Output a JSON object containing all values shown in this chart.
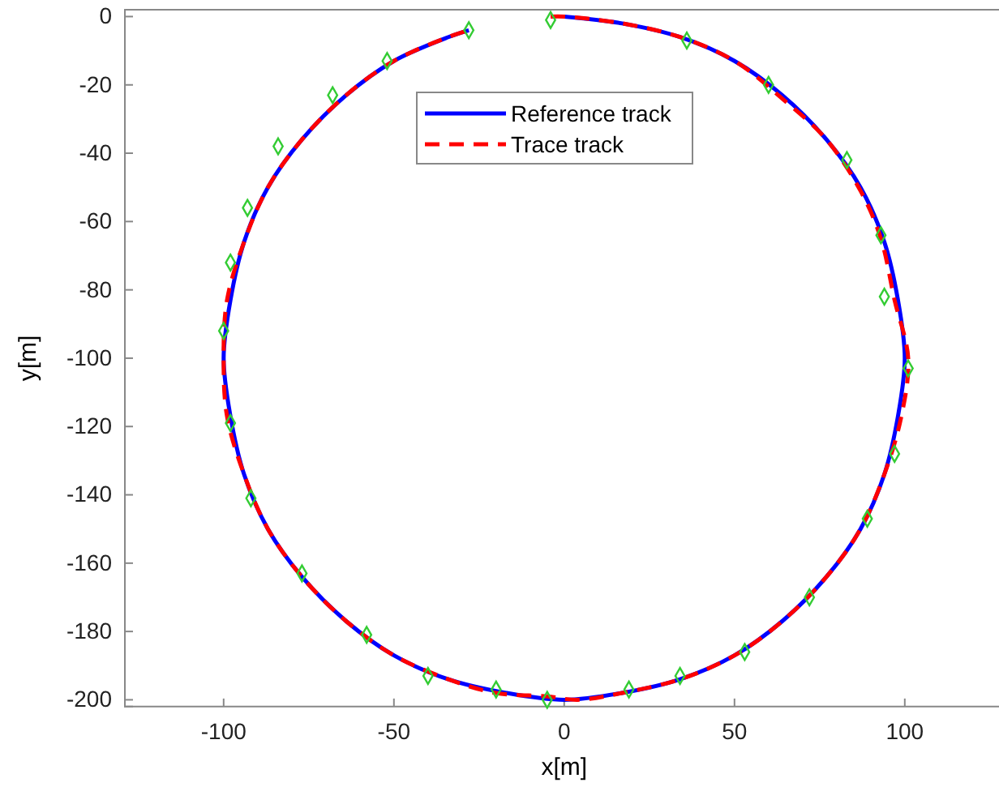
{
  "chart_data": {
    "type": "line",
    "xlabel": "x[m]",
    "ylabel": "y[m]",
    "xlim": [
      -129,
      130
    ],
    "ylim": [
      -202,
      2
    ],
    "xticks": [
      -100,
      -50,
      0,
      50,
      100
    ],
    "yticks": [
      -200,
      -180,
      -160,
      -140,
      -120,
      -100,
      -80,
      -60,
      -40,
      -20,
      0
    ],
    "grid": false,
    "legend": "top",
    "series": [
      {
        "name": "Reference track",
        "color": "#0000ff",
        "line_style": "solid",
        "x": [
          0,
          17,
          34,
          50,
          64,
          77,
          87,
          94,
          98,
          100,
          98,
          94,
          87,
          77,
          64,
          50,
          34,
          17,
          0,
          -17,
          -34,
          -50,
          -64,
          -77,
          -87,
          -94,
          -98,
          -100,
          -98,
          -94,
          -87,
          -77,
          -64,
          -50,
          -34,
          -28
        ],
        "values": [
          0,
          -2,
          -6,
          -13,
          -23,
          -36,
          -50,
          -66,
          -83,
          -100,
          -117,
          -134,
          -150,
          -164,
          -177,
          -187,
          -194,
          -198,
          -200,
          -198,
          -194,
          -187,
          -177,
          -164,
          -150,
          -134,
          -117,
          -100,
          -83,
          -66,
          -50,
          -36,
          -23,
          -13,
          -6,
          -4
        ]
      },
      {
        "name": "Trace track",
        "color": "#ff0000",
        "line_style": "dashed",
        "x": [
          -4,
          0,
          17,
          34,
          50,
          64,
          77,
          87,
          93,
          97,
          101,
          99,
          94,
          87,
          77,
          64,
          50,
          34,
          17,
          4,
          -5,
          -20,
          -34,
          -50,
          -64,
          -77,
          -87,
          -94,
          -99,
          -100,
          -99,
          -94,
          -87,
          -77,
          -64,
          -50,
          -34,
          -28
        ],
        "values": [
          0,
          0,
          -2,
          -6,
          -13,
          -24,
          -36,
          -51,
          -65,
          -83,
          -100,
          -117,
          -134,
          -150,
          -164,
          -177,
          -187,
          -194,
          -198,
          -200,
          -199,
          -198,
          -194,
          -187,
          -177,
          -164,
          -150,
          -134,
          -117,
          -100,
          -83,
          -66,
          -50,
          -36,
          -23,
          -13,
          -6,
          -4
        ]
      },
      {
        "type": "scatter",
        "color": "#33cc33",
        "marker": "diamond",
        "x": [
          -4,
          36,
          60,
          83,
          93,
          94,
          101,
          97,
          89,
          72,
          53,
          34,
          19,
          -5,
          -20,
          -40,
          -58,
          -77,
          -92,
          -98,
          -100,
          -98,
          -93,
          -84,
          -68,
          -52,
          -28
        ],
        "values": [
          -1,
          -7,
          -20,
          -42,
          -64,
          -82,
          -103,
          -128,
          -147,
          -170,
          -186,
          -193,
          -197,
          -200,
          -197,
          -193,
          -181,
          -163,
          -141,
          -119,
          -92,
          -72,
          -56,
          -38,
          -23,
          -13,
          -4
        ]
      }
    ]
  }
}
